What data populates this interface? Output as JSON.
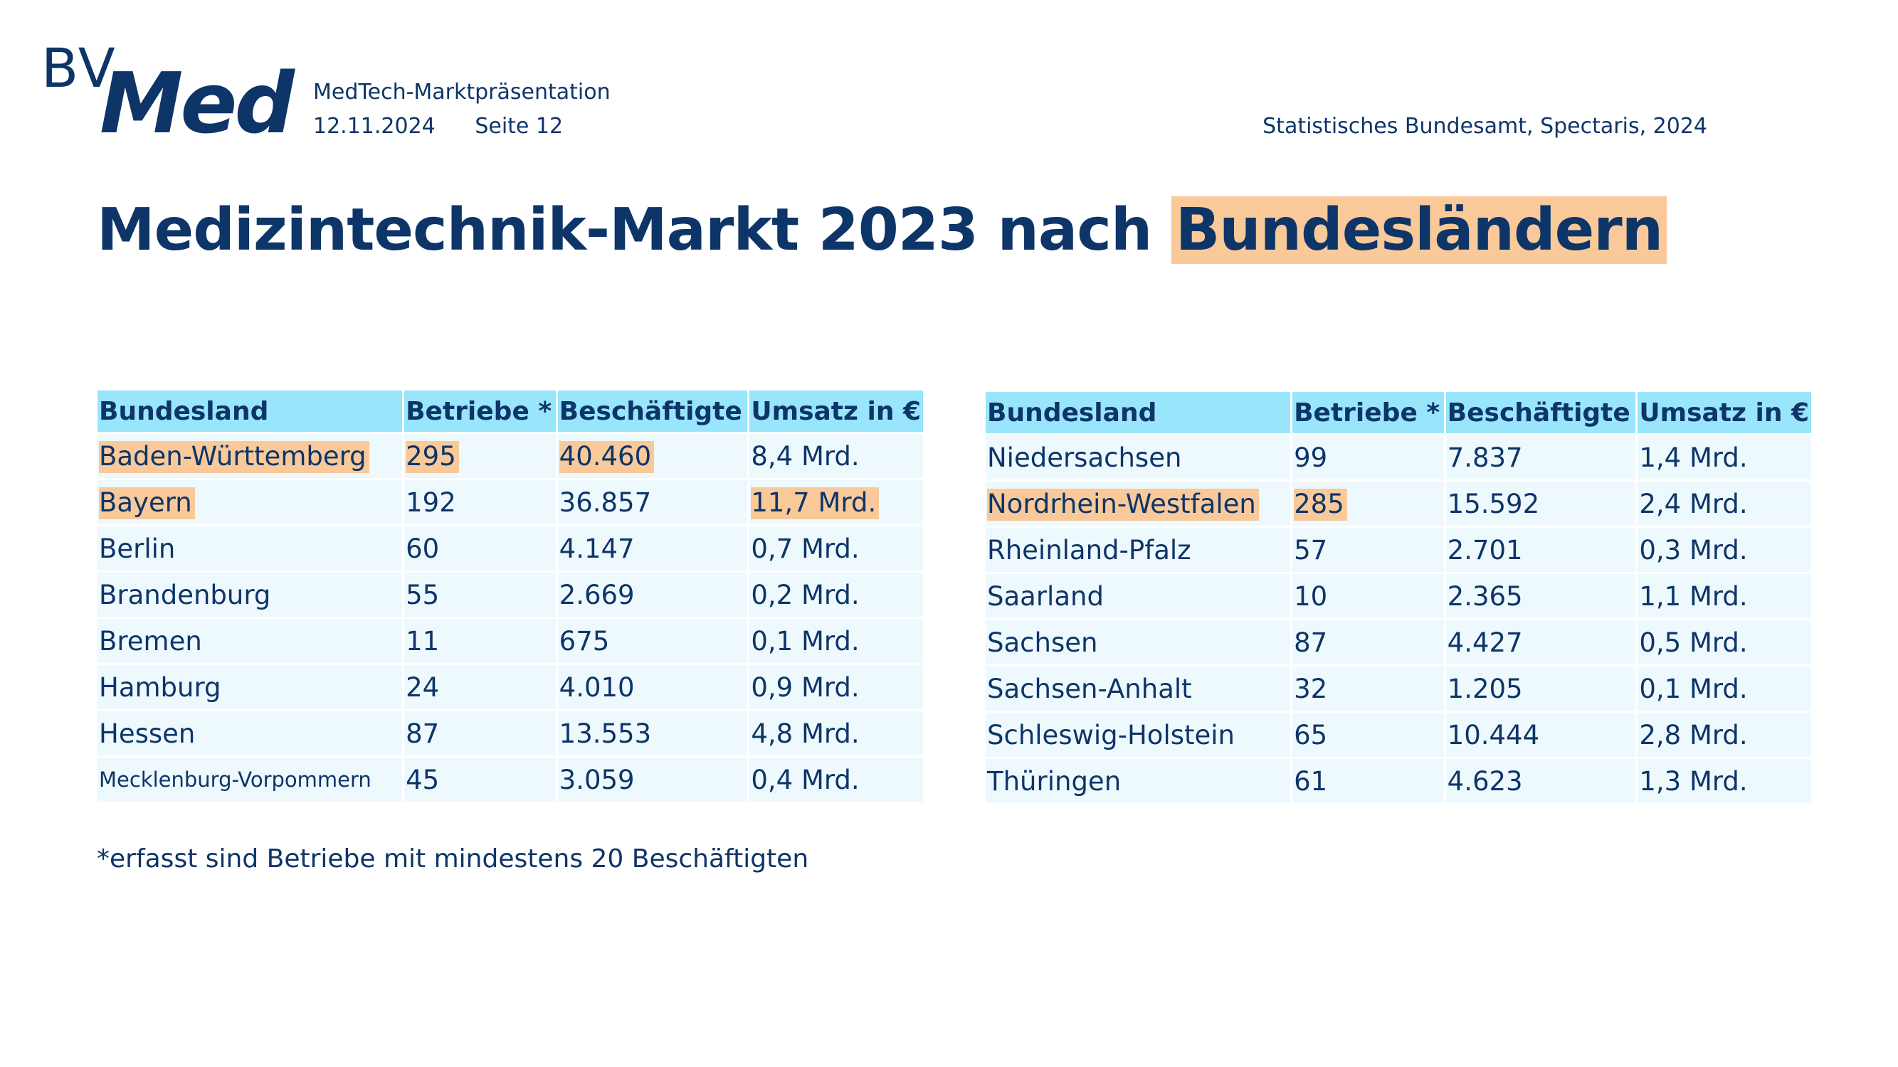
{
  "logo": {
    "part1": "BV",
    "part2": "Med"
  },
  "meta": {
    "presentation": "MedTech-Marktpräsentation",
    "date": "12.11.2024",
    "page": "Seite 12"
  },
  "source": "Statistisches Bundesamt, Spectaris, 2024",
  "title": {
    "main": "Medizintechnik-Markt 2023 nach ",
    "highlight": "Bundesländern"
  },
  "colors": {
    "brand": "#0d3568",
    "header_bg": "#98e5fc",
    "row_bg": "#eef9fe",
    "highlight": "#f9c99a"
  },
  "headers": [
    "Bundesland",
    "Betriebe *",
    "Beschäftigte",
    "Umsatz in €"
  ],
  "table_left": [
    [
      "Baden-Württemberg",
      "295",
      "40.460",
      "8,4 Mrd."
    ],
    [
      "Bayern",
      "192",
      "36.857",
      "11,7 Mrd."
    ],
    [
      "Berlin",
      "60",
      "4.147",
      "0,7 Mrd."
    ],
    [
      "Brandenburg",
      "55",
      "2.669",
      "0,2 Mrd."
    ],
    [
      "Bremen",
      "11",
      "675",
      "0,1 Mrd."
    ],
    [
      "Hamburg",
      "24",
      "4.010",
      "0,9 Mrd."
    ],
    [
      "Hessen",
      "87",
      "13.553",
      "4,8 Mrd."
    ],
    [
      "Mecklenburg-Vorpommern",
      "45",
      "3.059",
      "0,4 Mrd."
    ]
  ],
  "table_right": [
    [
      "Niedersachsen",
      "99",
      "7.837",
      "1,4 Mrd."
    ],
    [
      "Nordrhein-Westfalen",
      "285",
      "15.592",
      "2,4 Mrd."
    ],
    [
      "Rheinland-Pfalz",
      "57",
      "2.701",
      "0,3 Mrd."
    ],
    [
      "Saarland",
      "10",
      "2.365",
      "1,1 Mrd."
    ],
    [
      "Sachsen",
      "87",
      "4.427",
      "0,5 Mrd."
    ],
    [
      "Sachsen-Anhalt",
      "32",
      "1.205",
      "0,1 Mrd."
    ],
    [
      "Schleswig-Holstein",
      "65",
      "10.444",
      "2,8 Mrd."
    ],
    [
      "Thüringen",
      "61",
      "4.623",
      "1,3 Mrd."
    ]
  ],
  "footnote": "*erfasst sind Betriebe mit mindestens 20 Beschäftigten"
}
